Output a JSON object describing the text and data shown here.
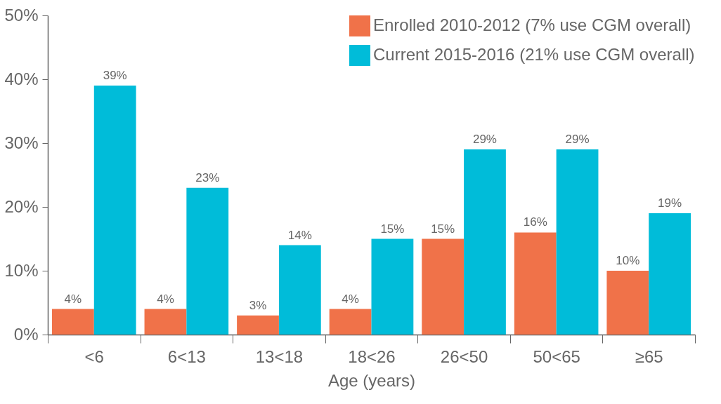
{
  "chart_data": {
    "type": "bar",
    "xlabel": "Age (years)",
    "categories": [
      "<6",
      "6<13",
      "13<18",
      "18<26",
      "26<50",
      "50<65",
      "≥65"
    ],
    "series": [
      {
        "name": "Enrolled 2010-2012 (7% use CGM overall)",
        "color": "#f07249",
        "values": [
          4,
          4,
          3,
          4,
          15,
          16,
          10
        ]
      },
      {
        "name": "Current 2015-2016 (21% use CGM overall)",
        "color": "#00bcd9",
        "values": [
          39,
          23,
          14,
          15,
          29,
          29,
          19
        ]
      }
    ],
    "ylim": [
      0,
      50
    ],
    "yticks": [
      {
        "value": 0,
        "label": "0%"
      },
      {
        "value": 10,
        "label": "10%"
      },
      {
        "value": 20,
        "label": "20%"
      },
      {
        "value": 30,
        "label": "30%"
      },
      {
        "value": 40,
        "label": "40%"
      },
      {
        "value": 50,
        "label": "50%"
      }
    ],
    "value_labels": [
      [
        "4%",
        "4%",
        "3%",
        "4%",
        "15%",
        "16%",
        "10%"
      ],
      [
        "39%",
        "23%",
        "14%",
        "15%",
        "29%",
        "29%",
        "19%"
      ]
    ],
    "legend": "top right",
    "grid": false
  }
}
